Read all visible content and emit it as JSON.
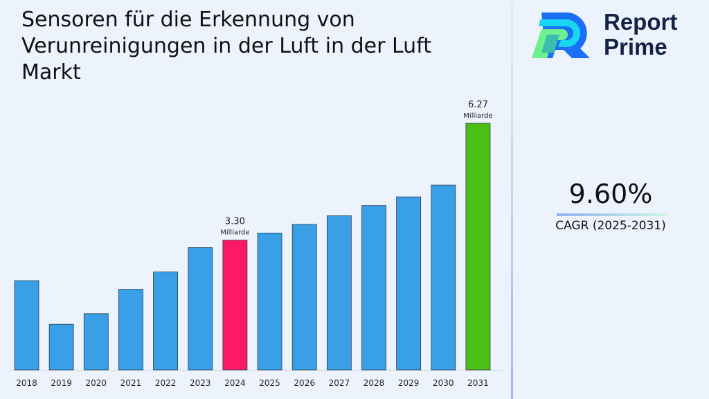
{
  "chart_data": {
    "type": "bar",
    "title": "Sensoren für die Erkennung von Verunreinigungen in der Luft in der Luft Markt",
    "categories": [
      "2018",
      "2019",
      "2020",
      "2021",
      "2022",
      "2023",
      "2024",
      "2025",
      "2026",
      "2027",
      "2028",
      "2029",
      "2030",
      "2031"
    ],
    "values": [
      2.27,
      1.16,
      1.43,
      2.05,
      2.49,
      3.11,
      3.3,
      3.48,
      3.7,
      3.92,
      4.18,
      4.4,
      4.7,
      6.27
    ],
    "data_labels": [
      {
        "category": "2024",
        "value": "3.30",
        "unit": "Milliarde"
      },
      {
        "category": "2031",
        "value": "6.27",
        "unit": "Milliarde"
      }
    ],
    "colors": {
      "default": "#39a0e8",
      "highlight_2024": "#fc1a66",
      "highlight_2031": "#4cbf14"
    },
    "ylim": [
      0,
      6.27
    ],
    "grid": false,
    "xlabel": "",
    "ylabel": ""
  },
  "brand": {
    "line1": "Report",
    "line2": "Prime"
  },
  "cagr": {
    "value": "9.60%",
    "label": "CAGR (2025-2031)"
  }
}
